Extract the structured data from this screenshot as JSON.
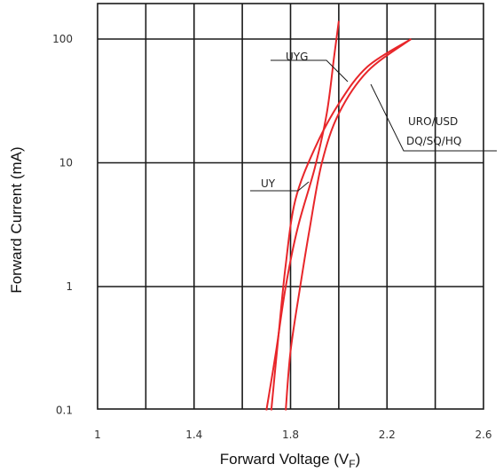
{
  "chart_data": {
    "type": "line",
    "title": "",
    "xlabel": "Forward Voltage (V",
    "xlabel_sub": "F",
    "xlabel_close": ")",
    "ylabel": "Forward Current (mA)",
    "xlim": [
      1.0,
      2.6
    ],
    "ylim": [
      0.1,
      140
    ],
    "y_scale": "log",
    "grid": true,
    "x_ticks": [
      {
        "value": 1.0,
        "label": "1"
      },
      {
        "value": 1.4,
        "label": "1.4"
      },
      {
        "value": 1.8,
        "label": "1.8"
      },
      {
        "value": 2.2,
        "label": "2.2"
      },
      {
        "value": 2.6,
        "label": "2.6"
      }
    ],
    "y_ticks": [
      {
        "value": 100,
        "label": "100"
      },
      {
        "value": 10,
        "label": "10"
      },
      {
        "value": 1,
        "label": "1"
      },
      {
        "value": 0.1,
        "label": "0.1"
      }
    ],
    "series_color": "#e8262a",
    "series": [
      {
        "name": "UYG",
        "points": [
          [
            1.7,
            0.1
          ],
          [
            1.74,
            0.3
          ],
          [
            1.78,
            1.0
          ],
          [
            1.83,
            3.0
          ],
          [
            1.9,
            9.0
          ],
          [
            1.95,
            25
          ],
          [
            1.98,
            70
          ],
          [
            2.0,
            140
          ]
        ]
      },
      {
        "name": "UY",
        "points": [
          [
            1.72,
            0.1
          ],
          [
            1.75,
            0.4
          ],
          [
            1.78,
            1.5
          ],
          [
            1.82,
            5.0
          ],
          [
            1.9,
            13
          ],
          [
            2.0,
            30
          ],
          [
            2.12,
            60
          ],
          [
            2.3,
            100
          ]
        ]
      },
      {
        "name": "URO/USD DQ/SQ/HQ",
        "points": [
          [
            1.78,
            0.1
          ],
          [
            1.8,
            0.3
          ],
          [
            1.84,
            1.0
          ],
          [
            1.88,
            3.0
          ],
          [
            1.93,
            10
          ],
          [
            2.0,
            25
          ],
          [
            2.12,
            55
          ],
          [
            2.3,
            100
          ]
        ]
      }
    ],
    "annotations": [
      {
        "text": "UYG",
        "series": 0
      },
      {
        "text": "UY",
        "series": 1
      },
      {
        "text": "URO/USD",
        "series": 2
      },
      {
        "text": "DQ/SQ/HQ",
        "series": 2
      }
    ]
  }
}
